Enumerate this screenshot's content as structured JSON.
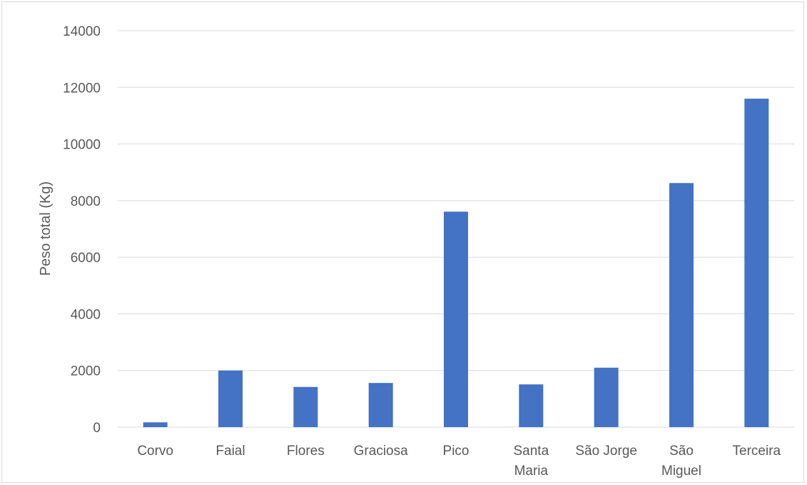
{
  "chart_data": {
    "type": "bar",
    "title": "",
    "xlabel": "",
    "ylabel": "Peso total (Kg)",
    "ylim": [
      0,
      14000
    ],
    "yticks": [
      "0",
      "2000",
      "4000",
      "6000",
      "8000",
      "10000",
      "12000",
      "14000"
    ],
    "categories": [
      [
        "Corvo"
      ],
      [
        "Faial"
      ],
      [
        "Flores"
      ],
      [
        "Graciosa"
      ],
      [
        "Pico"
      ],
      [
        "Santa",
        "Maria"
      ],
      [
        "São Jorge"
      ],
      [
        "São",
        "Miguel"
      ],
      [
        "Terceira"
      ]
    ],
    "values": [
      170,
      2000,
      1420,
      1560,
      7610,
      1510,
      2100,
      8620,
      11600
    ],
    "grid": true,
    "legend": "none",
    "bar_color": "#4472c4",
    "grid_color": "#d9d9d9"
  }
}
